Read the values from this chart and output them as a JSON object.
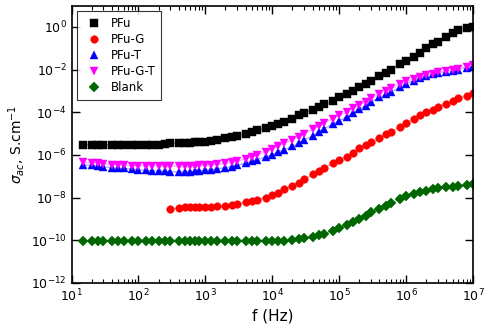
{
  "xlabel": "f (Hz)",
  "xlim": [
    10,
    10000000.0
  ],
  "ylim": [
    1e-12,
    10.0
  ],
  "series": {
    "PFu": {
      "color": "#000000",
      "marker": "s",
      "markersize": 5.5,
      "linecolor": "#aaaaaa",
      "x": [
        15,
        20,
        25,
        30,
        40,
        50,
        60,
        80,
        100,
        130,
        160,
        200,
        250,
        300,
        400,
        500,
        600,
        700,
        800,
        1000,
        1200,
        1500,
        2000,
        2500,
        3000,
        4000,
        5000,
        6000,
        8000,
        10000,
        12000,
        15000,
        20000,
        25000,
        30000,
        40000,
        50000,
        60000,
        80000,
        100000,
        130000,
        160000,
        200000,
        250000,
        300000,
        400000,
        500000,
        600000,
        800000,
        1000000,
        1300000,
        1600000,
        2000000,
        2500000,
        3000000,
        4000000,
        5000000,
        6000000,
        8000000,
        10000000
      ],
      "y": [
        3e-06,
        3e-06,
        3e-06,
        3e-06,
        3e-06,
        3e-06,
        3e-06,
        3e-06,
        3e-06,
        3e-06,
        3e-06,
        3e-06,
        3.2e-06,
        3.5e-06,
        3.5e-06,
        3.5e-06,
        3.5e-06,
        3.8e-06,
        4e-06,
        4e-06,
        4.5e-06,
        5e-06,
        6e-06,
        7e-06,
        8e-06,
        1e-05,
        1.2e-05,
        1.4e-05,
        1.8e-05,
        2.2e-05,
        2.8e-05,
        3.5e-05,
        5e-05,
        7e-05,
        9e-05,
        0.00013,
        0.00018,
        0.00023,
        0.00035,
        0.0005,
        0.0007,
        0.001,
        0.0015,
        0.0022,
        0.003,
        0.005,
        0.007,
        0.01,
        0.018,
        0.025,
        0.04,
        0.06,
        0.1,
        0.15,
        0.2,
        0.35,
        0.5,
        0.7,
        0.9,
        1.0
      ]
    },
    "PFu-G": {
      "color": "#ff0000",
      "marker": "o",
      "markersize": 5.5,
      "linecolor": "#ffaaaa",
      "x": [
        300,
        400,
        500,
        600,
        700,
        800,
        1000,
        1200,
        1500,
        2000,
        2500,
        3000,
        4000,
        5000,
        6000,
        8000,
        10000,
        12000,
        15000,
        20000,
        25000,
        30000,
        40000,
        50000,
        60000,
        80000,
        100000,
        130000,
        160000,
        200000,
        250000,
        300000,
        400000,
        500000,
        600000,
        800000,
        1000000,
        1300000,
        1600000,
        2000000,
        2500000,
        3000000,
        4000000,
        5000000,
        6000000,
        8000000,
        10000000
      ],
      "y": [
        3e-09,
        3.2e-09,
        3.5e-09,
        3.5e-09,
        3.5e-09,
        3.5e-09,
        3.5e-09,
        3.5e-09,
        3.8e-09,
        4e-09,
        4.5e-09,
        5e-09,
        6e-09,
        7e-09,
        8e-09,
        1e-08,
        1.3e-08,
        1.7e-08,
        2.5e-08,
        3.5e-08,
        5e-08,
        7e-08,
        1.2e-07,
        1.8e-07,
        2.5e-07,
        4e-07,
        6e-07,
        8e-07,
        1.2e-06,
        2e-06,
        3e-06,
        4e-06,
        6e-06,
        9e-06,
        1.2e-05,
        2e-05,
        3e-05,
        5e-05,
        7e-05,
        0.0001,
        0.00013,
        0.00018,
        0.00025,
        0.00035,
        0.00045,
        0.0006,
        0.0008
      ]
    },
    "PFu-T": {
      "color": "#0000ff",
      "marker": "^",
      "markersize": 5.5,
      "linecolor": "#aaaaff",
      "x": [
        15,
        20,
        25,
        30,
        40,
        50,
        60,
        80,
        100,
        130,
        160,
        200,
        250,
        300,
        400,
        500,
        600,
        700,
        800,
        1000,
        1200,
        1500,
        2000,
        2500,
        3000,
        4000,
        5000,
        6000,
        8000,
        10000,
        12000,
        15000,
        20000,
        25000,
        30000,
        40000,
        50000,
        60000,
        80000,
        100000,
        130000,
        160000,
        200000,
        250000,
        300000,
        400000,
        500000,
        600000,
        800000,
        1000000,
        1300000,
        1600000,
        2000000,
        2500000,
        3000000,
        4000000,
        5000000,
        6000000,
        8000000,
        10000000
      ],
      "y": [
        3.5e-07,
        3.2e-07,
        3e-07,
        2.8e-07,
        2.5e-07,
        2.4e-07,
        2.3e-07,
        2.2e-07,
        2e-07,
        1.9e-07,
        1.8e-07,
        1.7e-07,
        1.7e-07,
        1.6e-07,
        1.6e-07,
        1.6e-07,
        1.65e-07,
        1.7e-07,
        1.8e-07,
        1.9e-07,
        2e-07,
        2.2e-07,
        2.5e-07,
        2.8e-07,
        3.2e-07,
        4e-07,
        5e-07,
        6e-07,
        8e-07,
        1e-06,
        1.3e-06,
        1.7e-06,
        2.5e-06,
        3.5e-06,
        5e-06,
        8e-06,
        1.2e-05,
        1.7e-05,
        2.8e-05,
        4e-05,
        6e-05,
        9e-05,
        0.00014,
        0.0002,
        0.0003,
        0.0005,
        0.0007,
        0.0009,
        0.0015,
        0.0022,
        0.003,
        0.004,
        0.005,
        0.006,
        0.007,
        0.008,
        0.009,
        0.01,
        0.012,
        0.015
      ]
    },
    "PFu-G-T": {
      "color": "#ff00ff",
      "marker": "v",
      "markersize": 5.5,
      "linecolor": "#ffaaff",
      "x": [
        15,
        20,
        25,
        30,
        40,
        50,
        60,
        80,
        100,
        130,
        160,
        200,
        250,
        300,
        400,
        500,
        600,
        700,
        800,
        1000,
        1200,
        1500,
        2000,
        2500,
        3000,
        4000,
        5000,
        6000,
        8000,
        10000,
        12000,
        15000,
        20000,
        25000,
        30000,
        40000,
        50000,
        60000,
        80000,
        100000,
        130000,
        160000,
        200000,
        250000,
        300000,
        400000,
        500000,
        600000,
        800000,
        1000000,
        1300000,
        1600000,
        2000000,
        2500000,
        3000000,
        4000000,
        5000000,
        6000000,
        8000000,
        10000000
      ],
      "y": [
        4.5e-07,
        4.2e-07,
        4e-07,
        3.8e-07,
        3.5e-07,
        3.3e-07,
        3.2e-07,
        3e-07,
        3e-07,
        3e-07,
        3e-07,
        3e-07,
        3e-07,
        3e-07,
        3e-07,
        3e-07,
        3.1e-07,
        3.1e-07,
        3.2e-07,
        3.3e-07,
        3.4e-07,
        3.6e-07,
        4e-07,
        4.5e-07,
        5e-07,
        6.5e-07,
        8e-07,
        1e-06,
        1.4e-06,
        1.9e-06,
        2.5e-06,
        3.5e-06,
        5e-06,
        7e-06,
        1e-05,
        1.6e-05,
        2.3e-05,
        3.2e-05,
        5e-05,
        7e-05,
        0.0001,
        0.00015,
        0.00022,
        0.0003,
        0.00045,
        0.0007,
        0.001,
        0.0013,
        0.002,
        0.0028,
        0.0035,
        0.0045,
        0.0055,
        0.0065,
        0.0075,
        0.0085,
        0.0095,
        0.011,
        0.013,
        0.016
      ]
    },
    "Blank": {
      "color": "#006600",
      "marker": "D",
      "markersize": 5.0,
      "linecolor": "#99cc99",
      "x": [
        15,
        20,
        25,
        30,
        40,
        50,
        60,
        80,
        100,
        130,
        160,
        200,
        250,
        300,
        400,
        500,
        600,
        700,
        800,
        1000,
        1200,
        1500,
        2000,
        2500,
        3000,
        4000,
        5000,
        6000,
        8000,
        10000,
        12000,
        15000,
        20000,
        25000,
        30000,
        40000,
        50000,
        60000,
        80000,
        100000,
        130000,
        160000,
        200000,
        250000,
        300000,
        400000,
        500000,
        600000,
        800000,
        1000000,
        1300000,
        1600000,
        2000000,
        2500000,
        3000000,
        4000000,
        5000000,
        6000000,
        8000000,
        10000000
      ],
      "y": [
        9e-11,
        9e-11,
        9e-11,
        9e-11,
        9e-11,
        9e-11,
        9e-11,
        9e-11,
        9e-11,
        9e-11,
        9e-11,
        9e-11,
        9e-11,
        9e-11,
        9e-11,
        9e-11,
        9e-11,
        9e-11,
        9e-11,
        9e-11,
        9e-11,
        9e-11,
        9e-11,
        9e-11,
        9e-11,
        9e-11,
        9e-11,
        9e-11,
        9e-11,
        9e-11,
        9e-11,
        9.5e-11,
        1e-10,
        1.1e-10,
        1.2e-10,
        1.4e-10,
        1.7e-10,
        2e-10,
        2.8e-10,
        3.8e-10,
        5e-10,
        7e-10,
        1e-09,
        1.4e-09,
        2e-09,
        3e-09,
        4.2e-09,
        5.5e-09,
        8.5e-09,
        1.2e-08,
        1.5e-08,
        1.8e-08,
        2.1e-08,
        2.4e-08,
        2.7e-08,
        3e-08,
        3.2e-08,
        3.4e-08,
        3.8e-08,
        4.2e-08
      ]
    }
  }
}
